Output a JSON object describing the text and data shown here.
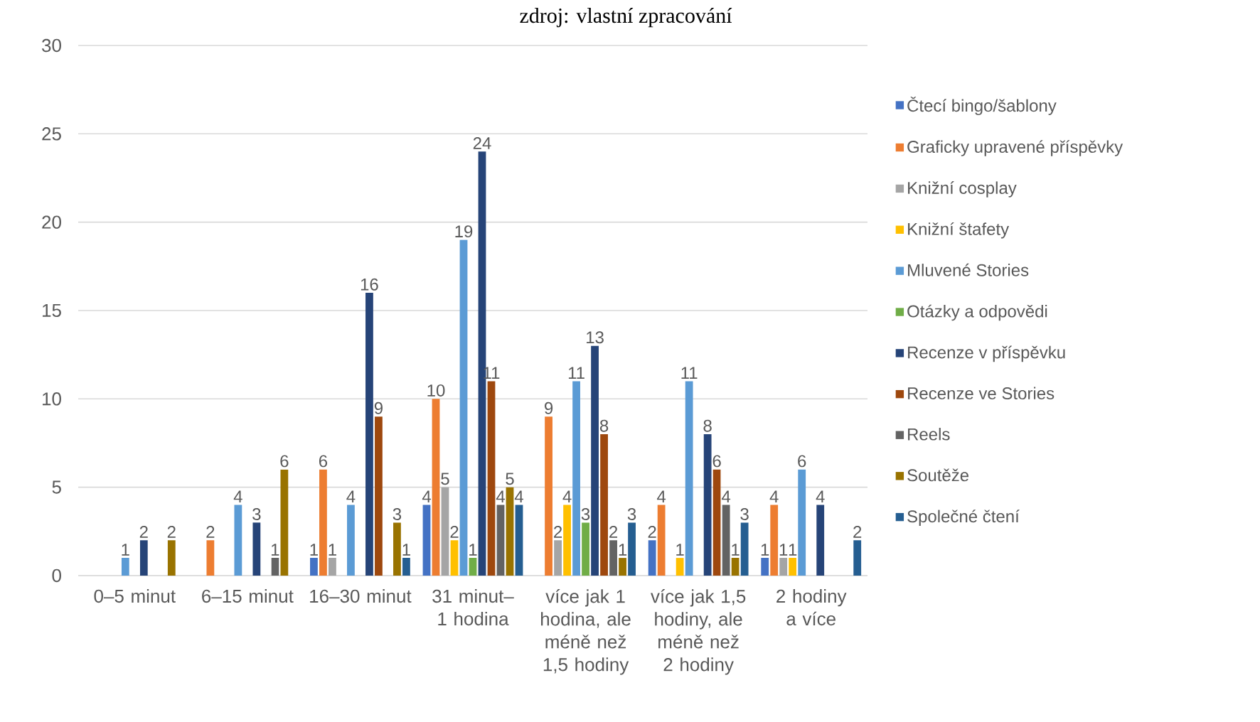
{
  "chart_data": {
    "type": "bar",
    "annotations": [
      "zdroj: vlastní zpracování"
    ],
    "categories": [
      "0–5 minut",
      "6–15 minut",
      "16–30 minut",
      "31 minut– 1 hodina",
      "více jak 1 hodina, ale méně než 1,5 hodiny",
      "více jak 1,5 hodiny, ale méně než 2 hodiny",
      "2 hodiny a více"
    ],
    "series": [
      {
        "name": "Čtecí bingo/šablony",
        "color": "#4472c4",
        "values": [
          null,
          null,
          1,
          4,
          null,
          2,
          1
        ]
      },
      {
        "name": "Graficky upravené příspěvky",
        "color": "#ed7d31",
        "values": [
          null,
          2,
          6,
          10,
          9,
          4,
          4
        ]
      },
      {
        "name": "Knižní cosplay",
        "color": "#a5a5a5",
        "values": [
          null,
          null,
          1,
          5,
          2,
          null,
          1
        ]
      },
      {
        "name": "Knižní štafety",
        "color": "#ffc000",
        "values": [
          null,
          null,
          null,
          2,
          4,
          1,
          1
        ]
      },
      {
        "name": "Mluvené Stories",
        "color": "#5b9bd5",
        "values": [
          1,
          4,
          4,
          19,
          11,
          11,
          6
        ]
      },
      {
        "name": "Otázky a odpovědi",
        "color": "#70ad47",
        "values": [
          null,
          null,
          null,
          1,
          3,
          null,
          null
        ]
      },
      {
        "name": "Recenze v příspěvku",
        "color": "#264478",
        "values": [
          2,
          3,
          16,
          24,
          13,
          8,
          4
        ]
      },
      {
        "name": "Recenze ve Stories",
        "color": "#9e480e",
        "values": [
          null,
          null,
          9,
          11,
          8,
          6,
          null
        ]
      },
      {
        "name": "Reels",
        "color": "#636363",
        "values": [
          null,
          1,
          null,
          4,
          2,
          4,
          null
        ]
      },
      {
        "name": "Soutěže",
        "color": "#997300",
        "values": [
          2,
          6,
          3,
          5,
          1,
          1,
          null
        ]
      },
      {
        "name": "Společné čtení",
        "color": "#255e91",
        "values": [
          null,
          null,
          1,
          4,
          3,
          3,
          2
        ]
      }
    ],
    "ylim": [
      0,
      30
    ],
    "yticks": [
      0,
      5,
      10,
      15,
      20,
      25,
      30
    ],
    "grid": "y",
    "legend": "right",
    "data_labels": true
  }
}
